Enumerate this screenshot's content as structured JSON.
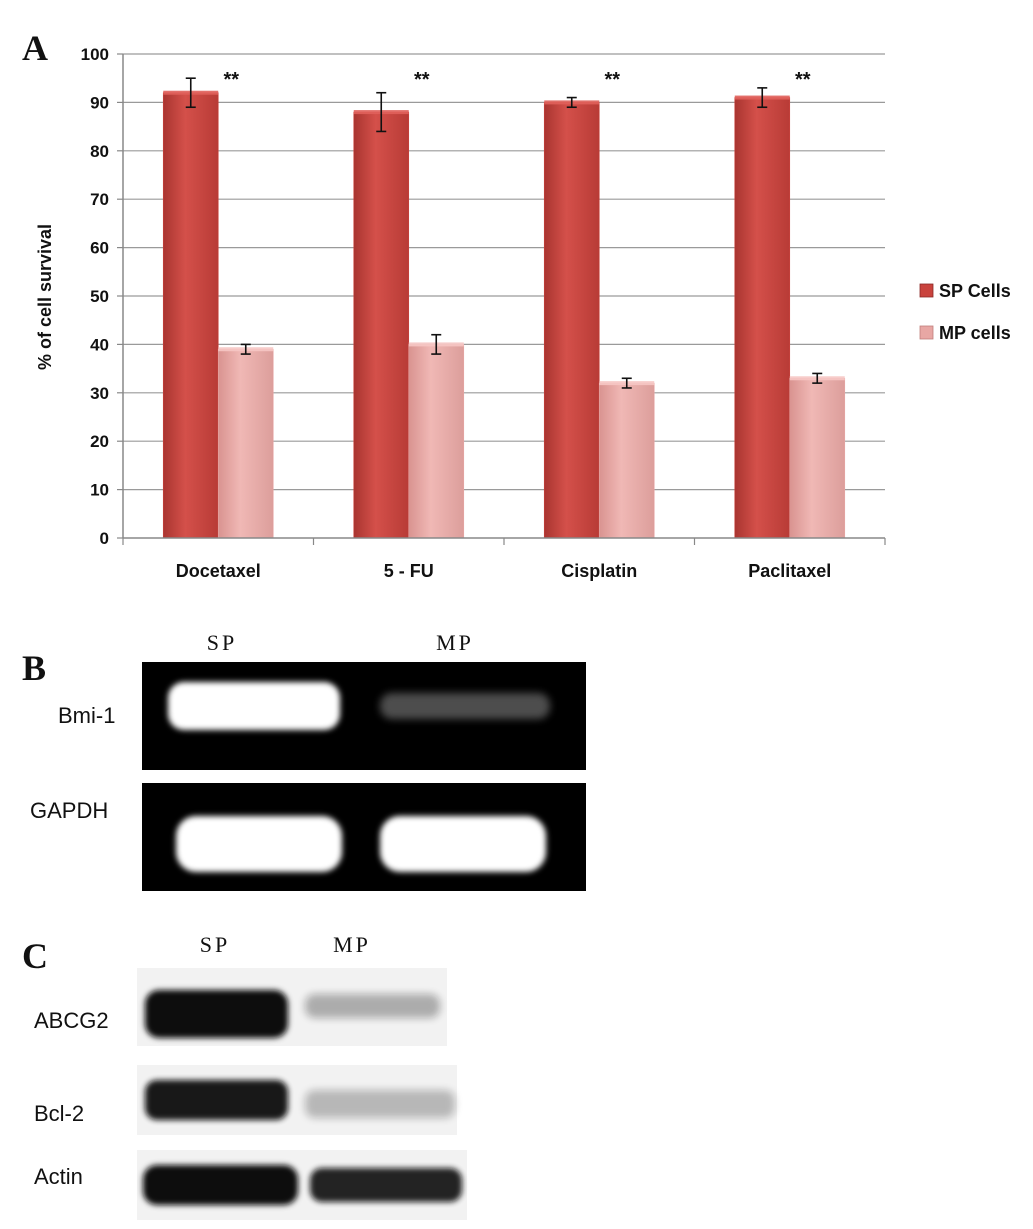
{
  "panels": {
    "a": {
      "letter": "A"
    },
    "b": {
      "letter": "B",
      "lanes": [
        "SP",
        "MP"
      ],
      "genes": [
        "Bmi-1",
        "GAPDH"
      ],
      "band_intensity": {
        "Bmi-1": [
          1.0,
          0.3
        ],
        "GAPDH": [
          1.0,
          1.0
        ]
      }
    },
    "c": {
      "letter": "C",
      "lanes": [
        "SP",
        "MP"
      ],
      "proteins": [
        "ABCG2",
        "Bcl-2",
        "Actin"
      ],
      "band_intensity": {
        "ABCG2": [
          1.0,
          0.3
        ],
        "Bcl-2": [
          0.95,
          0.25
        ],
        "Actin": [
          1.0,
          0.9
        ]
      }
    }
  },
  "chart_data": {
    "type": "bar",
    "title": "",
    "xlabel": "",
    "ylabel": "% of cell survival",
    "ylim": [
      0,
      100
    ],
    "yticks": [
      "0",
      "10",
      "20",
      "30",
      "40",
      "50",
      "60",
      "70",
      "80",
      "90",
      "100"
    ],
    "grid": true,
    "legend_position": "right",
    "categories": [
      "Docetaxel",
      "5 - FU",
      "Cisplatin",
      "Paclitaxel"
    ],
    "series": [
      {
        "name": "SP Cells",
        "color": "#c9433d",
        "values": [
          92,
          88,
          90,
          91
        ],
        "errors": [
          3,
          4,
          1,
          2
        ]
      },
      {
        "name": "MP cells",
        "color": "#e8a7a4",
        "values": [
          39,
          40,
          32,
          33
        ],
        "errors": [
          1,
          2,
          1,
          1
        ]
      }
    ],
    "annotations": [
      "**",
      "**",
      "**",
      "**"
    ]
  }
}
